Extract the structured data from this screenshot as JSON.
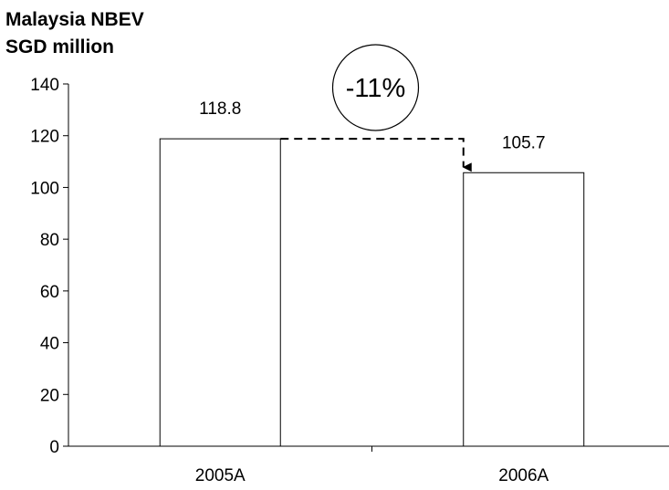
{
  "chart_data": {
    "type": "bar",
    "title": "Malaysia NBEV",
    "subtitle": "SGD million",
    "categories": [
      "2005A",
      "2006A"
    ],
    "values": [
      118.8,
      105.7
    ],
    "data_labels": [
      "118.8",
      "105.7"
    ],
    "ylim": [
      0,
      140
    ],
    "yticks": [
      "0",
      "20",
      "40",
      "60",
      "80",
      "100",
      "120",
      "140"
    ],
    "xlabel": "",
    "ylabel": "",
    "grid": false,
    "legend": "none",
    "bar_fill": "#ffffff",
    "bar_stroke": "#000000",
    "annotation": {
      "text": "-11%",
      "from": "2005A",
      "to": "2006A"
    }
  }
}
